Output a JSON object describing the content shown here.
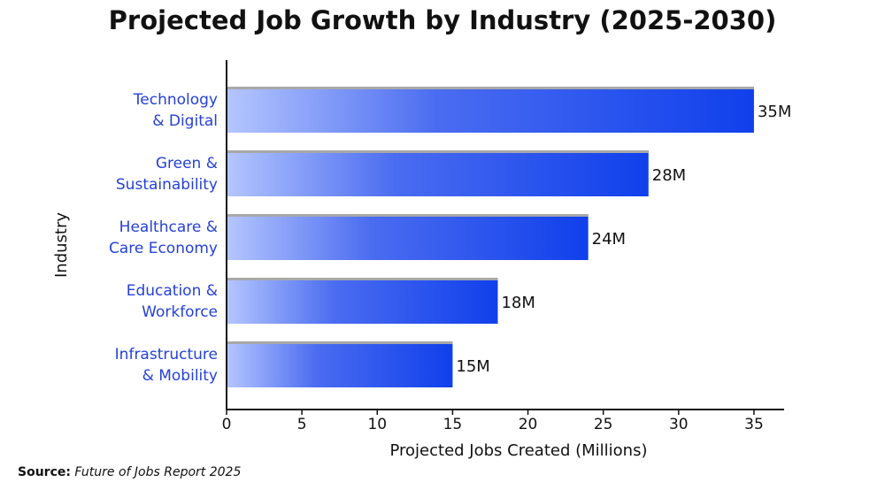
{
  "chart_data": {
    "type": "bar",
    "orientation": "horizontal",
    "title": "Projected Job Growth by Industry (2025-2030)",
    "xlabel": "Projected Jobs Created (Millions)",
    "ylabel": "Industry",
    "categories": [
      [
        "Technology",
        "& Digital"
      ],
      [
        "Green &",
        "Sustainability"
      ],
      [
        "Healthcare &",
        "Care Economy"
      ],
      [
        "Education &",
        "Workforce"
      ],
      [
        "Infrastructure",
        "& Mobility"
      ]
    ],
    "values": [
      35,
      28,
      24,
      18,
      15
    ],
    "value_labels": [
      "35M",
      "28M",
      "24M",
      "18M",
      "15M"
    ],
    "xlim": [
      0,
      37
    ],
    "xticks": [
      0,
      5,
      10,
      15,
      20,
      25,
      30,
      35
    ],
    "grid": false,
    "colors": {
      "bar_start": "#b5c6ff",
      "bar_end": "#1040ec",
      "bar_top": "#a8a8a8",
      "category_text": "#2541d6"
    }
  },
  "source": {
    "label": "Source:",
    "value": "Future of Jobs Report 2025"
  }
}
